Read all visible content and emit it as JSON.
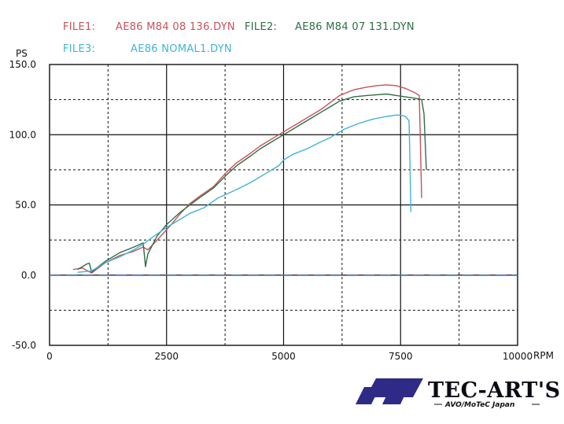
{
  "chart_data": {
    "type": "line",
    "title": "",
    "xlabel": "RPM",
    "ylabel": "PS",
    "xlim": [
      0,
      10000
    ],
    "ylim": [
      -50,
      150
    ],
    "x_major_ticks": [
      0,
      2500,
      5000,
      7500,
      10000
    ],
    "x_minor_grid": [
      1250,
      3750,
      6250,
      8750
    ],
    "y_major_ticks": [
      -50,
      0,
      50,
      100,
      150
    ],
    "y_minor_grid": [
      -25,
      25,
      75,
      125
    ],
    "y_tick_labels": [
      "-50.0",
      "0.0",
      "50.0",
      "100.0",
      "150.0"
    ],
    "x_tick_labels": [
      "0",
      "2500",
      "5000",
      "7500",
      "10000"
    ],
    "grid": true,
    "legend": [
      {
        "key": "FILE1:",
        "name": "AE86 M84 08 136.DYN",
        "color": "#c8505a"
      },
      {
        "key": "FILE2:",
        "name": "AE86 M84 07 131.DYN",
        "color": "#2f6e46"
      },
      {
        "key": "FILE3:",
        "name": "AE86 NOMAL1.DYN",
        "color": "#3fb3d6"
      }
    ],
    "series": [
      {
        "name": "AE86 M84 08 136.DYN",
        "color": "#c8505a",
        "points": [
          [
            500,
            4
          ],
          [
            700,
            5
          ],
          [
            900,
            1.5
          ],
          [
            1000,
            4
          ],
          [
            1200,
            9
          ],
          [
            1500,
            14
          ],
          [
            1800,
            17
          ],
          [
            2000,
            20
          ],
          [
            2100,
            18
          ],
          [
            2300,
            25
          ],
          [
            2600,
            36
          ],
          [
            2800,
            44
          ],
          [
            3000,
            51
          ],
          [
            3200,
            56
          ],
          [
            3500,
            63
          ],
          [
            3800,
            74
          ],
          [
            4000,
            80
          ],
          [
            4300,
            87
          ],
          [
            4500,
            92
          ],
          [
            4800,
            98
          ],
          [
            5000,
            102
          ],
          [
            5200,
            106
          ],
          [
            5500,
            112
          ],
          [
            5800,
            118
          ],
          [
            6000,
            123
          ],
          [
            6200,
            128
          ],
          [
            6500,
            132
          ],
          [
            6800,
            134
          ],
          [
            7000,
            135
          ],
          [
            7200,
            135.5
          ],
          [
            7400,
            135
          ],
          [
            7600,
            133
          ],
          [
            7800,
            130
          ],
          [
            7900,
            128
          ],
          [
            7920,
            100
          ],
          [
            7950,
            55
          ]
        ]
      },
      {
        "name": "AE86 M84 07 131.DYN",
        "color": "#2f6e46",
        "points": [
          [
            600,
            4
          ],
          [
            800,
            8
          ],
          [
            850,
            8.5
          ],
          [
            900,
            2
          ],
          [
            1000,
            5
          ],
          [
            1200,
            10
          ],
          [
            1500,
            16
          ],
          [
            1800,
            20
          ],
          [
            2000,
            23
          ],
          [
            2050,
            6
          ],
          [
            2100,
            15
          ],
          [
            2300,
            28
          ],
          [
            2500,
            36
          ],
          [
            2800,
            45
          ],
          [
            3000,
            50
          ],
          [
            3200,
            55
          ],
          [
            3500,
            62
          ],
          [
            3800,
            72
          ],
          [
            4000,
            78
          ],
          [
            4300,
            85
          ],
          [
            4500,
            90
          ],
          [
            4800,
            96
          ],
          [
            5000,
            100
          ],
          [
            5200,
            104
          ],
          [
            5500,
            110
          ],
          [
            5800,
            116
          ],
          [
            6000,
            120
          ],
          [
            6200,
            124
          ],
          [
            6500,
            127
          ],
          [
            6800,
            128
          ],
          [
            7000,
            128.5
          ],
          [
            7200,
            129
          ],
          [
            7400,
            128
          ],
          [
            7600,
            127
          ],
          [
            7800,
            126
          ],
          [
            7950,
            125
          ],
          [
            8000,
            115
          ],
          [
            8050,
            75
          ]
        ]
      },
      {
        "name": "AE86 NOMAL1.DYN",
        "color": "#3fb3d6",
        "points": [
          [
            600,
            2
          ],
          [
            900,
            3
          ],
          [
            1000,
            5
          ],
          [
            1200,
            9
          ],
          [
            1500,
            13
          ],
          [
            1800,
            18
          ],
          [
            2000,
            22
          ],
          [
            2200,
            27
          ],
          [
            2500,
            34
          ],
          [
            2800,
            40
          ],
          [
            3000,
            44
          ],
          [
            3300,
            48
          ],
          [
            3600,
            55
          ],
          [
            4000,
            61
          ],
          [
            4300,
            66
          ],
          [
            4600,
            72
          ],
          [
            4900,
            78
          ],
          [
            5000,
            82
          ],
          [
            5200,
            86
          ],
          [
            5500,
            90
          ],
          [
            5800,
            95
          ],
          [
            6000,
            98
          ],
          [
            6300,
            104
          ],
          [
            6600,
            108
          ],
          [
            6900,
            111
          ],
          [
            7200,
            113
          ],
          [
            7400,
            114
          ],
          [
            7500,
            114
          ],
          [
            7600,
            113
          ],
          [
            7680,
            110
          ],
          [
            7700,
            80
          ],
          [
            7720,
            45
          ]
        ]
      },
      {
        "name": "baseline",
        "color": "#3b63b5",
        "dashed": true,
        "points": [
          [
            0,
            0
          ],
          [
            10000,
            0
          ]
        ]
      }
    ]
  },
  "logo": {
    "name": "TEC-ART'S",
    "sub": "AVO/MoTeC Japan"
  }
}
